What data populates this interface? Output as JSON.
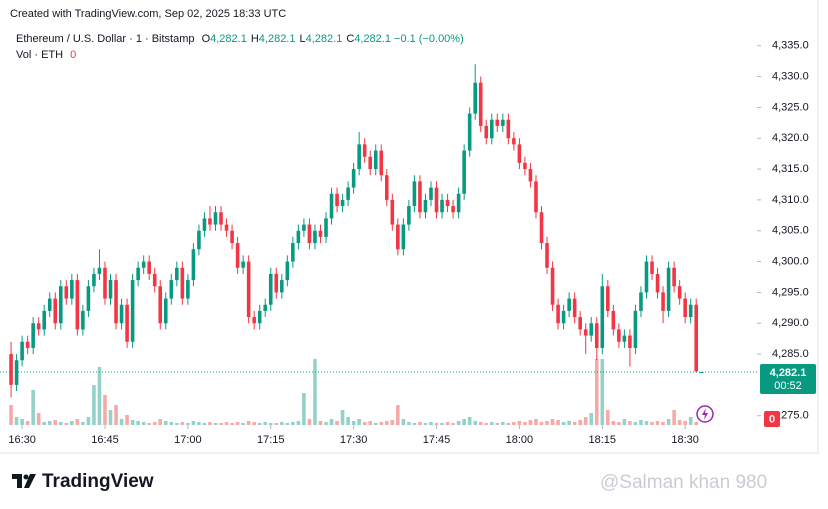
{
  "created": "Created with TradingView.com, Sep 02, 2025 18:33 UTC",
  "logo": "TradingView",
  "watermark": "@Salman khan 980",
  "chart_data": {
    "type": "candlestick",
    "title": "Ethereum / U.S. Dollar · 1 · Bitstamp",
    "legend_ohlc": [
      {
        "label": "O",
        "value": "4,282.1"
      },
      {
        "label": "H",
        "value": "4,282.1"
      },
      {
        "label": "L",
        "value": "4,282.1"
      },
      {
        "label": "C",
        "value": "4,282.1"
      }
    ],
    "change": "−0.1 (−0.00%)",
    "volume_title": "Vol · ETH",
    "volume_value": "0",
    "up_color": "#089981",
    "down_color": "#f23645",
    "volume_up_color": "#92d2c8",
    "volume_down_color": "#f7a9a7",
    "ylim": [
      4273.5,
      4338.2
    ],
    "yticks": [
      {
        "value": 4275,
        "label": "4,275.0"
      },
      {
        "value": 4285,
        "label": "4,285.0"
      },
      {
        "value": 4290,
        "label": "4,290.0"
      },
      {
        "value": 4295,
        "label": "4,295.0"
      },
      {
        "value": 4300,
        "label": "4,300.0"
      },
      {
        "value": 4305,
        "label": "4,305.0"
      },
      {
        "value": 4310,
        "label": "4,310.0"
      },
      {
        "value": 4315,
        "label": "4,315.0"
      },
      {
        "value": 4320,
        "label": "4,320.0"
      },
      {
        "value": 4325,
        "label": "4,325.0"
      },
      {
        "value": 4330,
        "label": "4,330.0"
      },
      {
        "value": 4335,
        "label": "4,335.0"
      }
    ],
    "xlim": [
      -2,
      135
    ],
    "xticks": [
      {
        "value": 2,
        "label": "16:30"
      },
      {
        "value": 17,
        "label": "16:45"
      },
      {
        "value": 32,
        "label": "17:00"
      },
      {
        "value": 47,
        "label": "17:15"
      },
      {
        "value": 62,
        "label": "17:30"
      },
      {
        "value": 77,
        "label": "17:45"
      },
      {
        "value": 92,
        "label": "18:00"
      },
      {
        "value": 107,
        "label": "18:15"
      },
      {
        "value": 122,
        "label": "18:30"
      }
    ],
    "last_price": {
      "value": 4282.1,
      "label": "4,282.1"
    },
    "countdown": "00:52",
    "volume_last_label": "0",
    "volume_lim": [
      0,
      100
    ],
    "candles": [
      [
        4285,
        4287,
        4278,
        4280
      ],
      [
        4280,
        4285,
        4279,
        4284
      ],
      [
        4284,
        4288,
        4283,
        4287
      ],
      [
        4287,
        4288,
        4285,
        4286
      ],
      [
        4286,
        4291,
        4285,
        4290
      ],
      [
        4290,
        4291,
        4288,
        4289
      ],
      [
        4289,
        4293,
        4288,
        4292
      ],
      [
        4292,
        4295,
        4291,
        4294
      ],
      [
        4294,
        4295,
        4289,
        4290
      ],
      [
        4290,
        4297,
        4289,
        4296
      ],
      [
        4296,
        4297,
        4293,
        4294
      ],
      [
        4294,
        4298,
        4293,
        4297
      ],
      [
        4297,
        4298,
        4288,
        4289
      ],
      [
        4289,
        4293,
        4288,
        4292
      ],
      [
        4292,
        4297,
        4291,
        4296
      ],
      [
        4296,
        4299,
        4295,
        4298
      ],
      [
        4298,
        4302,
        4297,
        4299
      ],
      [
        4299,
        4300,
        4293,
        4294
      ],
      [
        4294,
        4298,
        4293,
        4297
      ],
      [
        4297,
        4298,
        4289,
        4290
      ],
      [
        4290,
        4294,
        4289,
        4293
      ],
      [
        4293,
        4294,
        4286,
        4287
      ],
      [
        4287,
        4298,
        4286,
        4297
      ],
      [
        4297,
        4300,
        4296,
        4299
      ],
      [
        4299,
        4301,
        4298,
        4300
      ],
      [
        4300,
        4301,
        4297,
        4298
      ],
      [
        4298,
        4299,
        4295,
        4296
      ],
      [
        4296,
        4297,
        4289,
        4290
      ],
      [
        4290,
        4295,
        4289,
        4294
      ],
      [
        4294,
        4298,
        4293,
        4297
      ],
      [
        4297,
        4300,
        4296,
        4299
      ],
      [
        4299,
        4300,
        4293,
        4294
      ],
      [
        4294,
        4298,
        4293,
        4297
      ],
      [
        4297,
        4303,
        4296,
        4302
      ],
      [
        4302,
        4306,
        4301,
        4305
      ],
      [
        4305,
        4308,
        4304,
        4307
      ],
      [
        4307,
        4309,
        4305,
        4306
      ],
      [
        4306,
        4309,
        4305,
        4308
      ],
      [
        4308,
        4309,
        4305,
        4306
      ],
      [
        4306,
        4307,
        4304,
        4305
      ],
      [
        4305,
        4306,
        4302,
        4303
      ],
      [
        4303,
        4304,
        4298,
        4299
      ],
      [
        4299,
        4301,
        4298,
        4300
      ],
      [
        4300,
        4301,
        4290,
        4291
      ],
      [
        4291,
        4292,
        4289,
        4290
      ],
      [
        4290,
        4293,
        4289,
        4292
      ],
      [
        4292,
        4294,
        4291,
        4293
      ],
      [
        4293,
        4299,
        4292,
        4298
      ],
      [
        4298,
        4299,
        4294,
        4295
      ],
      [
        4295,
        4298,
        4294,
        4297
      ],
      [
        4297,
        4301,
        4296,
        4300
      ],
      [
        4300,
        4304,
        4299,
        4303
      ],
      [
        4303,
        4306,
        4302,
        4305
      ],
      [
        4305,
        4307,
        4304,
        4306
      ],
      [
        4306,
        4307,
        4302,
        4303
      ],
      [
        4303,
        4306,
        4302,
        4305
      ],
      [
        4305,
        4306,
        4303,
        4304
      ],
      [
        4304,
        4308,
        4303,
        4307
      ],
      [
        4307,
        4312,
        4306,
        4311
      ],
      [
        4311,
        4312,
        4308,
        4309
      ],
      [
        4309,
        4311,
        4308,
        4310
      ],
      [
        4310,
        4313,
        4309,
        4312
      ],
      [
        4312,
        4316,
        4311,
        4315
      ],
      [
        4315,
        4321,
        4314,
        4319
      ],
      [
        4319,
        4320,
        4316,
        4317
      ],
      [
        4317,
        4318,
        4314,
        4315
      ],
      [
        4315,
        4319,
        4314,
        4318
      ],
      [
        4318,
        4319,
        4313,
        4314
      ],
      [
        4314,
        4315,
        4309,
        4310
      ],
      [
        4310,
        4311,
        4305,
        4306
      ],
      [
        4306,
        4307,
        4301,
        4302
      ],
      [
        4302,
        4307,
        4301,
        4306
      ],
      [
        4306,
        4310,
        4305,
        4309
      ],
      [
        4309,
        4314,
        4308,
        4313
      ],
      [
        4313,
        4314,
        4307,
        4308
      ],
      [
        4308,
        4311,
        4307,
        4310
      ],
      [
        4310,
        4313,
        4309,
        4312
      ],
      [
        4312,
        4313,
        4307,
        4308
      ],
      [
        4308,
        4311,
        4307,
        4310
      ],
      [
        4310,
        4311,
        4308,
        4309
      ],
      [
        4309,
        4310,
        4307,
        4308
      ],
      [
        4308,
        4312,
        4307,
        4311
      ],
      [
        4311,
        4319,
        4310,
        4318
      ],
      [
        4318,
        4325,
        4317,
        4324
      ],
      [
        4324,
        4332,
        4323,
        4329
      ],
      [
        4329,
        4330,
        4321,
        4322
      ],
      [
        4322,
        4323,
        4319,
        4320
      ],
      [
        4320,
        4324,
        4319,
        4323
      ],
      [
        4323,
        4324,
        4321,
        4322
      ],
      [
        4322,
        4324,
        4321,
        4323
      ],
      [
        4323,
        4324,
        4319,
        4320
      ],
      [
        4320,
        4321,
        4318,
        4319
      ],
      [
        4319,
        4320,
        4315,
        4316
      ],
      [
        4316,
        4317,
        4314,
        4315
      ],
      [
        4315,
        4316,
        4312,
        4313
      ],
      [
        4313,
        4314,
        4307,
        4308
      ],
      [
        4308,
        4309,
        4302,
        4303
      ],
      [
        4303,
        4304,
        4298,
        4299
      ],
      [
        4299,
        4300,
        4292,
        4293
      ],
      [
        4293,
        4294,
        4289,
        4290
      ],
      [
        4290,
        4293,
        4289,
        4292
      ],
      [
        4292,
        4295,
        4291,
        4294
      ],
      [
        4294,
        4295,
        4290,
        4291
      ],
      [
        4291,
        4292,
        4288,
        4289
      ],
      [
        4289,
        4290,
        4285,
        4288
      ],
      [
        4288,
        4291,
        4287,
        4290
      ],
      [
        4290,
        4291,
        4284,
        4286
      ],
      [
        4286,
        4298,
        4285,
        4296
      ],
      [
        4296,
        4297,
        4291,
        4292
      ],
      [
        4292,
        4293,
        4288,
        4289
      ],
      [
        4289,
        4290,
        4286,
        4287
      ],
      [
        4287,
        4289,
        4286,
        4288
      ],
      [
        4288,
        4289,
        4283,
        4286
      ],
      [
        4286,
        4293,
        4285,
        4292
      ],
      [
        4292,
        4296,
        4291,
        4295
      ],
      [
        4295,
        4301,
        4294,
        4300
      ],
      [
        4300,
        4301,
        4297,
        4298
      ],
      [
        4298,
        4299,
        4294,
        4295
      ],
      [
        4295,
        4296,
        4290,
        4292
      ],
      [
        4292,
        4300,
        4291,
        4299
      ],
      [
        4299,
        4300,
        4295,
        4296
      ],
      [
        4296,
        4297,
        4293,
        4294
      ],
      [
        4294,
        4295,
        4290,
        4291
      ],
      [
        4291,
        4294,
        4290,
        4293
      ],
      [
        4293,
        4294,
        4282,
        4282.2
      ],
      [
        4282.1,
        4282.1,
        4282.1,
        4282.1
      ]
    ],
    "volume": [
      20,
      8,
      6,
      4,
      35,
      12,
      3,
      4,
      5,
      3,
      2,
      4,
      6,
      3,
      8,
      40,
      58,
      30,
      15,
      20,
      6,
      10,
      5,
      4,
      3,
      2,
      3,
      6,
      4,
      3,
      2,
      3,
      2,
      4,
      3,
      2,
      3,
      2,
      2,
      3,
      2,
      3,
      2,
      4,
      3,
      2,
      3,
      2,
      2,
      3,
      2,
      3,
      4,
      32,
      6,
      66,
      4,
      3,
      6,
      4,
      15,
      8,
      4,
      6,
      3,
      4,
      2,
      3,
      4,
      5,
      20,
      6,
      3,
      2,
      3,
      2,
      3,
      2,
      2,
      3,
      2,
      4,
      6,
      8,
      4,
      3,
      2,
      3,
      2,
      3,
      2,
      3,
      4,
      3,
      5,
      6,
      3,
      4,
      6,
      5,
      3,
      4,
      3,
      5,
      8,
      12,
      66,
      66,
      15,
      4,
      3,
      6,
      4,
      3,
      5,
      4,
      3,
      4,
      3,
      6,
      15,
      5,
      4,
      8,
      3,
      0
    ]
  }
}
